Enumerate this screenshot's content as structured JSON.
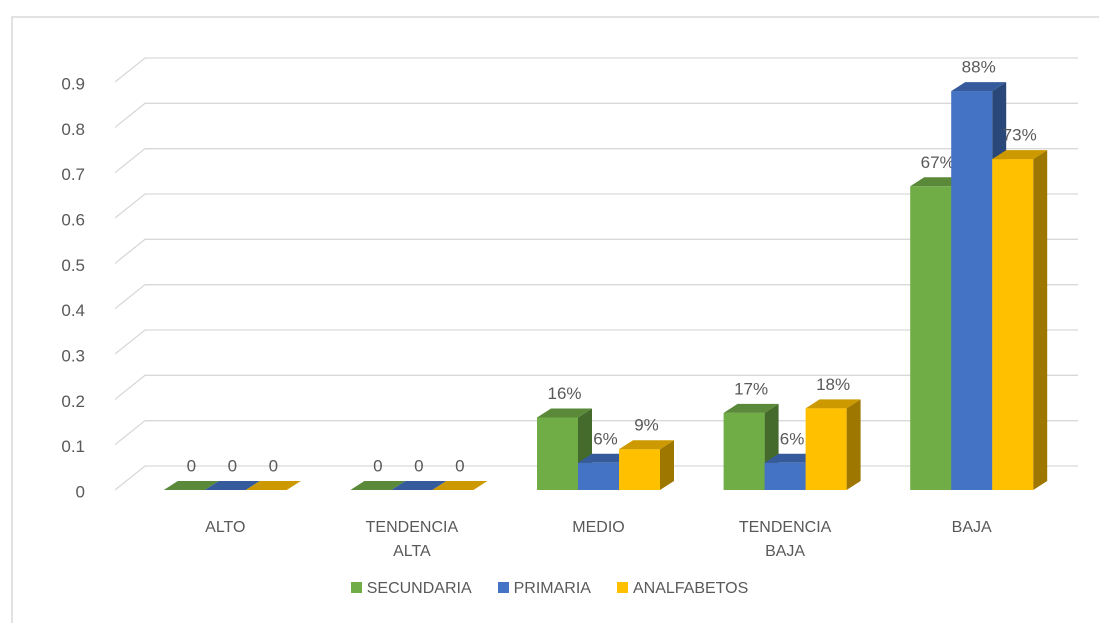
{
  "chart_data": {
    "type": "bar3d",
    "categories": [
      "ALTO",
      "TENDENCIA ALTA",
      "MEDIO",
      "TENDENCIA BAJA",
      "BAJA"
    ],
    "series": [
      {
        "name": "SECUNDARIA",
        "color": "#70ad47",
        "values": [
          0,
          0,
          0.16,
          0.17,
          0.67
        ],
        "value_labels": [
          "0",
          "0",
          "16%",
          "17%",
          "67%"
        ]
      },
      {
        "name": "PRIMARIA",
        "color": "#4472c4",
        "values": [
          0,
          0,
          0.06,
          0.06,
          0.88
        ],
        "value_labels": [
          "0",
          "0",
          "6%",
          "6%",
          "88%"
        ]
      },
      {
        "name": "ANALFABETOS",
        "color": "#ffc000",
        "values": [
          0,
          0,
          0.09,
          0.18,
          0.73
        ],
        "value_labels": [
          "0",
          "0",
          "9%",
          "18%",
          "73%"
        ]
      }
    ],
    "ylim": [
      0,
      0.9
    ],
    "yticks": [
      0,
      0.1,
      0.2,
      0.3,
      0.4,
      0.5,
      0.6,
      0.7,
      0.8,
      0.9
    ],
    "grid": true,
    "legend": "bottom"
  }
}
